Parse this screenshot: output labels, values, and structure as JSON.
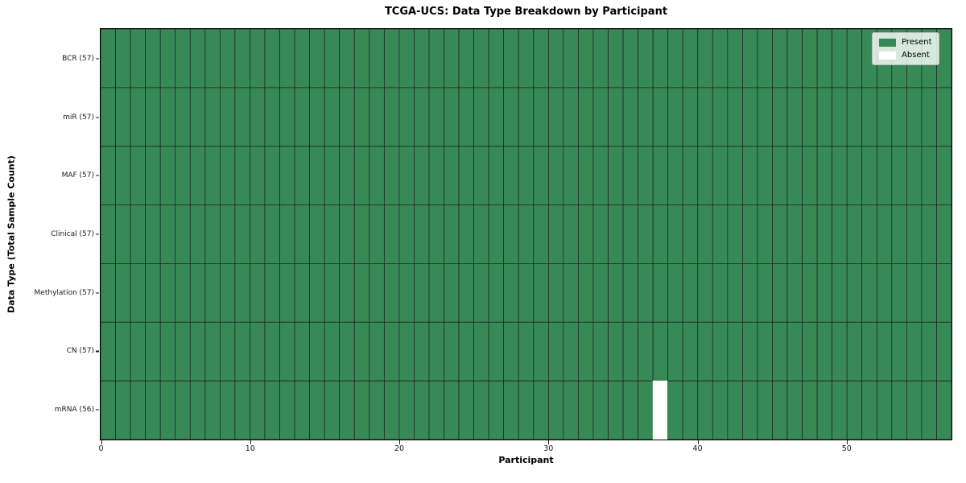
{
  "chart_data": {
    "type": "heatmap",
    "title": "TCGA-UCS: Data Type Breakdown by Participant",
    "xlabel": "Participant",
    "ylabel": "Data Type (Total Sample Count)",
    "x_range": [
      0,
      57
    ],
    "x_ticks": [
      0,
      10,
      20,
      30,
      40,
      50
    ],
    "n_participants": 57,
    "rows": [
      {
        "label": "BCR (57)",
        "total": 57,
        "absent_participants": []
      },
      {
        "label": "miR (57)",
        "total": 57,
        "absent_participants": []
      },
      {
        "label": "MAF (57)",
        "total": 57,
        "absent_participants": []
      },
      {
        "label": "Clinical (57)",
        "total": 57,
        "absent_participants": []
      },
      {
        "label": "Methylation (57)",
        "total": 57,
        "absent_participants": []
      },
      {
        "label": "CN (57)",
        "total": 57,
        "absent_participants": []
      },
      {
        "label": "mRNA (56)",
        "total": 56,
        "absent_participants": [
          37
        ]
      }
    ],
    "legend": [
      {
        "label": "Present",
        "color": "#378a55"
      },
      {
        "label": "Absent",
        "color": "#ffffff"
      }
    ],
    "colors": {
      "present": "#378a55",
      "absent": "#ffffff",
      "edge": "#1f1f1f"
    },
    "legend_position": "upper right"
  }
}
